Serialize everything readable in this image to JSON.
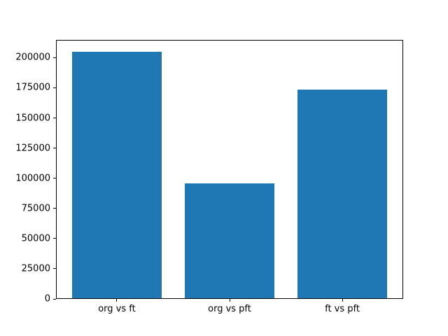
{
  "chart_data": {
    "type": "bar",
    "title": "",
    "xlabel": "",
    "ylabel": "",
    "categories": [
      "org vs ft",
      "org vs pft",
      "ft vs pft"
    ],
    "values": [
      204500,
      95000,
      173000
    ],
    "yticks": [
      0,
      25000,
      50000,
      75000,
      100000,
      125000,
      150000,
      175000,
      200000
    ],
    "ytick_labels": [
      "0",
      "25000",
      "50000",
      "75000",
      "100000",
      "125000",
      "150000",
      "175000",
      "200000"
    ],
    "ylim": [
      0,
      214725
    ],
    "xlim": [
      -0.54,
      2.54
    ],
    "bar_width": 0.8,
    "bar_color": "#1f77b4",
    "grid": false,
    "legend_position": "none"
  },
  "figure": {
    "background": "#ffffff",
    "spine_color": "#000000",
    "text_color": "#000000"
  }
}
